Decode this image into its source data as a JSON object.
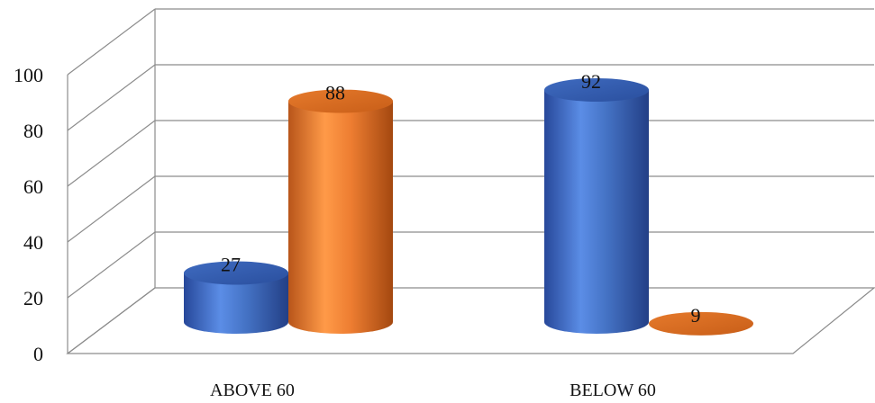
{
  "chart_data": {
    "type": "bar",
    "categories": [
      "ABOVE 60",
      "BELOW 60"
    ],
    "series": [
      {
        "values": [
          27,
          92
        ],
        "color": "#4472C4"
      },
      {
        "values": [
          88,
          9
        ],
        "color": "#ED7D31"
      }
    ],
    "ylim": [
      0,
      100
    ],
    "yticks": [
      0,
      20,
      40,
      60,
      80,
      100
    ],
    "grid": true,
    "legend": "none",
    "style": "3d-cylinder"
  }
}
